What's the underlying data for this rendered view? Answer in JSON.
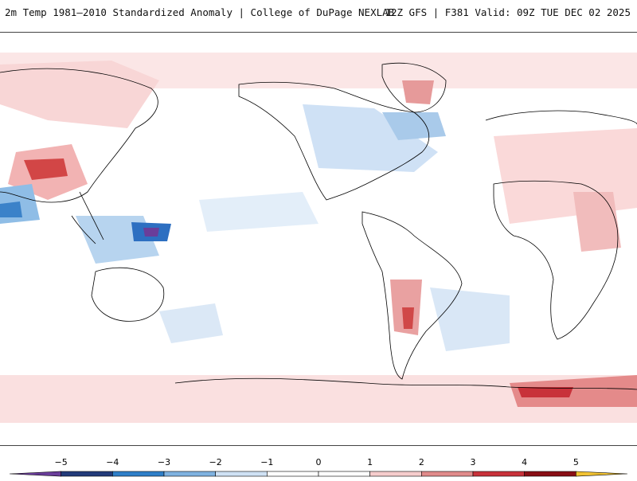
{
  "header": {
    "left_title": "2m Temp 1981–2010 Standardized Anomaly | College of DuPage NEXLAB",
    "right_title": "12Z GFS | F381 Valid: 09Z TUE DEC 02 2025"
  },
  "legend": {
    "ticks": [
      "−5",
      "−4",
      "−3",
      "−2",
      "−1",
      "0",
      "1",
      "2",
      "3",
      "4",
      "5"
    ],
    "colors": [
      "#6a3d9a",
      "#233b7a",
      "#2f7fc8",
      "#7fb2e0",
      "#cfe1f4",
      "#ffffff",
      "#ffffff",
      "#f6cccc",
      "#e08b8b",
      "#c8323a",
      "#8a0f15",
      "#f1c232"
    ]
  },
  "colors": {
    "land_outline": "#000000",
    "warm_light": "#f8d8d8",
    "warm_mid": "#ec9e9e",
    "warm_strong": "#cc3b3b",
    "cool_light": "#d5e5f6",
    "cool_mid": "#86b6e3",
    "cool_strong": "#2d6fc1",
    "extreme_cold": "#6a3d9a"
  }
}
